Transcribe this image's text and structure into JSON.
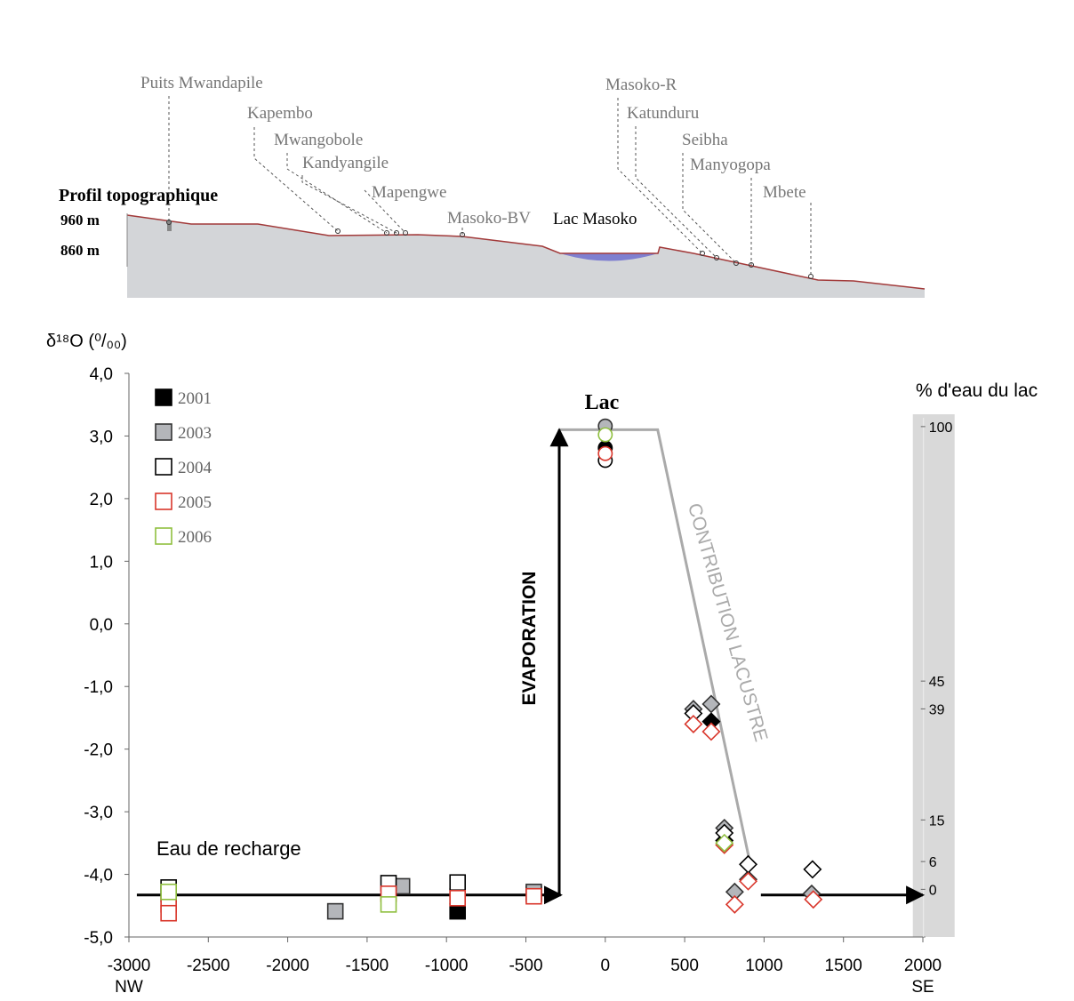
{
  "profile": {
    "title": "Profil topographique",
    "elevations": [
      {
        "value": 960,
        "label": "960 m"
      },
      {
        "value": 860,
        "label": "860 m"
      }
    ],
    "lake": "Lac Masoko",
    "sites": [
      "Puits Mwandapile",
      "Kapembo",
      "Mwangobole",
      "Kandyangile",
      "Mapengwe",
      "Masoko-BV",
      "Masoko-R",
      "Katunduru",
      "Seibha",
      "Manyogopa",
      "Mbete"
    ]
  },
  "chart_data": {
    "type": "scatter",
    "y_label": "δ¹⁸O (⁰/₀₀)",
    "xlim": [
      -3000,
      2200
    ],
    "ylim": [
      -5,
      4
    ],
    "xticks": [
      -3000,
      -2500,
      -2000,
      -1500,
      -1000,
      -500,
      0,
      500,
      1000,
      1500,
      2000
    ],
    "x_left_label": "NW",
    "x_right_label": "SE",
    "yticks": [
      {
        "value": 4,
        "label": "4,0"
      },
      {
        "value": 3,
        "label": "3,0"
      },
      {
        "value": 2,
        "label": "2,0"
      },
      {
        "value": 1,
        "label": "1,0"
      },
      {
        "value": 0,
        "label": "0,0"
      },
      {
        "value": -1,
        "label": "-1,0"
      },
      {
        "value": -2,
        "label": "-2,0"
      },
      {
        "value": -3,
        "label": "-3,0"
      },
      {
        "value": -4,
        "label": "-4,0"
      },
      {
        "value": -5,
        "label": "-5,0"
      }
    ],
    "y2_label": "% d'eau du lac",
    "y2lim": [
      -10.3,
      111.5
    ],
    "y2ticks": [
      0,
      6,
      15,
      39,
      45,
      100
    ],
    "annotations": {
      "lake": "Lac",
      "evaporation": "EVAPORATION",
      "contribution": "CONTRIBUTION LACUSTRE",
      "recharge": "Eau de recharge"
    },
    "arrows": [
      {
        "x": [
          -2950,
          -280
        ],
        "y": [
          -4.33,
          -4.33
        ]
      },
      {
        "x": [
          -290,
          -290
        ],
        "y": [
          -4.33,
          3.1
        ]
      },
      {
        "x": [
          980,
          2000
        ],
        "y": [
          -4.33,
          -4.33
        ]
      }
    ],
    "contribution_line": {
      "x": [
        -290,
        330,
        910
      ],
      "y": [
        3.1,
        3.1,
        -3.8
      ],
      "color": "#aaaaaa"
    },
    "series": [
      {
        "name": "2001",
        "fill": "#000000",
        "color": "#000000",
        "x": [
          -930,
          -450,
          0,
          667,
          750
        ],
        "values": [
          -4.59,
          -4.31,
          2.81,
          -1.56,
          -3.46
        ],
        "markers": [
          "square",
          "square",
          "circle",
          "diamond",
          "diamond"
        ]
      },
      {
        "name": "2003",
        "fill": "#b4b6ba",
        "color": "#333333",
        "x": [
          -2750,
          -1700,
          -1280,
          -930,
          -450,
          0,
          555,
          667,
          750,
          815,
          900,
          1300
        ],
        "values": [
          -4.31,
          -4.59,
          -4.19,
          -4.35,
          -4.28,
          3.16,
          -1.36,
          -1.28,
          -3.26,
          -4.28,
          -4.08,
          -4.31
        ],
        "markers": [
          "square",
          "square",
          "square",
          "square",
          "square",
          "circle",
          "diamond",
          "diamond",
          "diamond",
          "diamond",
          "diamond",
          "diamond"
        ]
      },
      {
        "name": "2004",
        "fill": "#ffffff",
        "color": "#000000",
        "x": [
          -2750,
          -1365,
          -930,
          0,
          555,
          750,
          900,
          1305
        ],
        "values": [
          -4.21,
          -4.14,
          -4.13,
          2.61,
          -1.43,
          -3.34,
          -3.84,
          -3.92
        ],
        "markers": [
          "square",
          "square",
          "square",
          "circle",
          "diamond",
          "diamond",
          "diamond",
          "diamond"
        ]
      },
      {
        "name": "2005",
        "fill": "#ffffff",
        "color": "#d9362b",
        "x": [
          -2750,
          -2750,
          -1365,
          -930,
          -450,
          0,
          555,
          667,
          750,
          815,
          900,
          1310
        ],
        "values": [
          -4.48,
          -4.62,
          -4.31,
          -4.38,
          -4.35,
          2.72,
          -1.6,
          -1.72,
          -3.53,
          -4.48,
          -4.11,
          -4.4
        ],
        "markers": [
          "square",
          "square",
          "square",
          "square",
          "square",
          "circle",
          "diamond",
          "diamond",
          "diamond",
          "diamond",
          "diamond",
          "diamond"
        ]
      },
      {
        "name": "2006",
        "fill": "#ffffff",
        "color": "#8fbf3f",
        "x": [
          -2750,
          -1365,
          0,
          750
        ],
        "values": [
          -4.28,
          -4.48,
          3.02,
          -3.5
        ],
        "markers": [
          "square",
          "square",
          "circle",
          "diamond"
        ]
      }
    ]
  }
}
